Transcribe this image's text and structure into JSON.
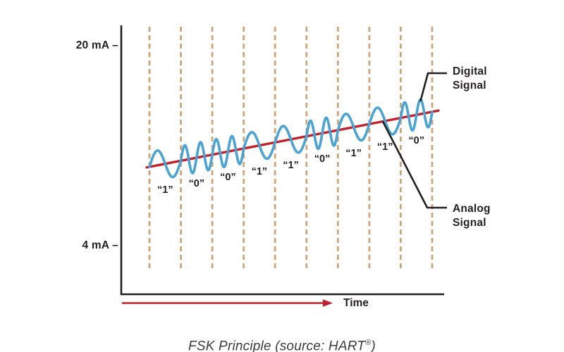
{
  "colors": {
    "digital_blue": "#4aa3d3",
    "analog_red": "#c0222b",
    "gridline_tan": "#d0a478",
    "ink_black": "#231f20",
    "caption_gray": "#3c3c3e"
  },
  "chart_data": {
    "type": "line",
    "title": "FSK Principle (source: HART®)",
    "caption_parts": [
      "FSK Principle (source: HART",
      "®",
      ")"
    ],
    "y_axis": {
      "top_label": "20 mA –",
      "bottom_label": "4 mA –"
    },
    "x_axis": {
      "label": "Time"
    },
    "grid": "10 vertical dashed bit-period dividers, evenly spaced",
    "legend_position": "right, with pointer lines",
    "bits": [
      "1",
      "0",
      "0",
      "1",
      "1",
      "0",
      "1",
      "1",
      "0"
    ],
    "bit_labels": [
      "“1”",
      "“0”",
      "“0”",
      "“1”",
      "“1”",
      "“0”",
      "“1”",
      "“1”",
      "“0”"
    ],
    "wave": {
      "cycles_per_one": 1,
      "cycles_per_zero": 2,
      "shape": "sine superimposed on rising analog line"
    },
    "series": [
      {
        "name": "Digital Signal",
        "label": "Digital\nSignal",
        "color": "#4aa3d3"
      },
      {
        "name": "Analog Signal",
        "label": "Analog\nSignal",
        "color": "#c0222b"
      }
    ]
  }
}
